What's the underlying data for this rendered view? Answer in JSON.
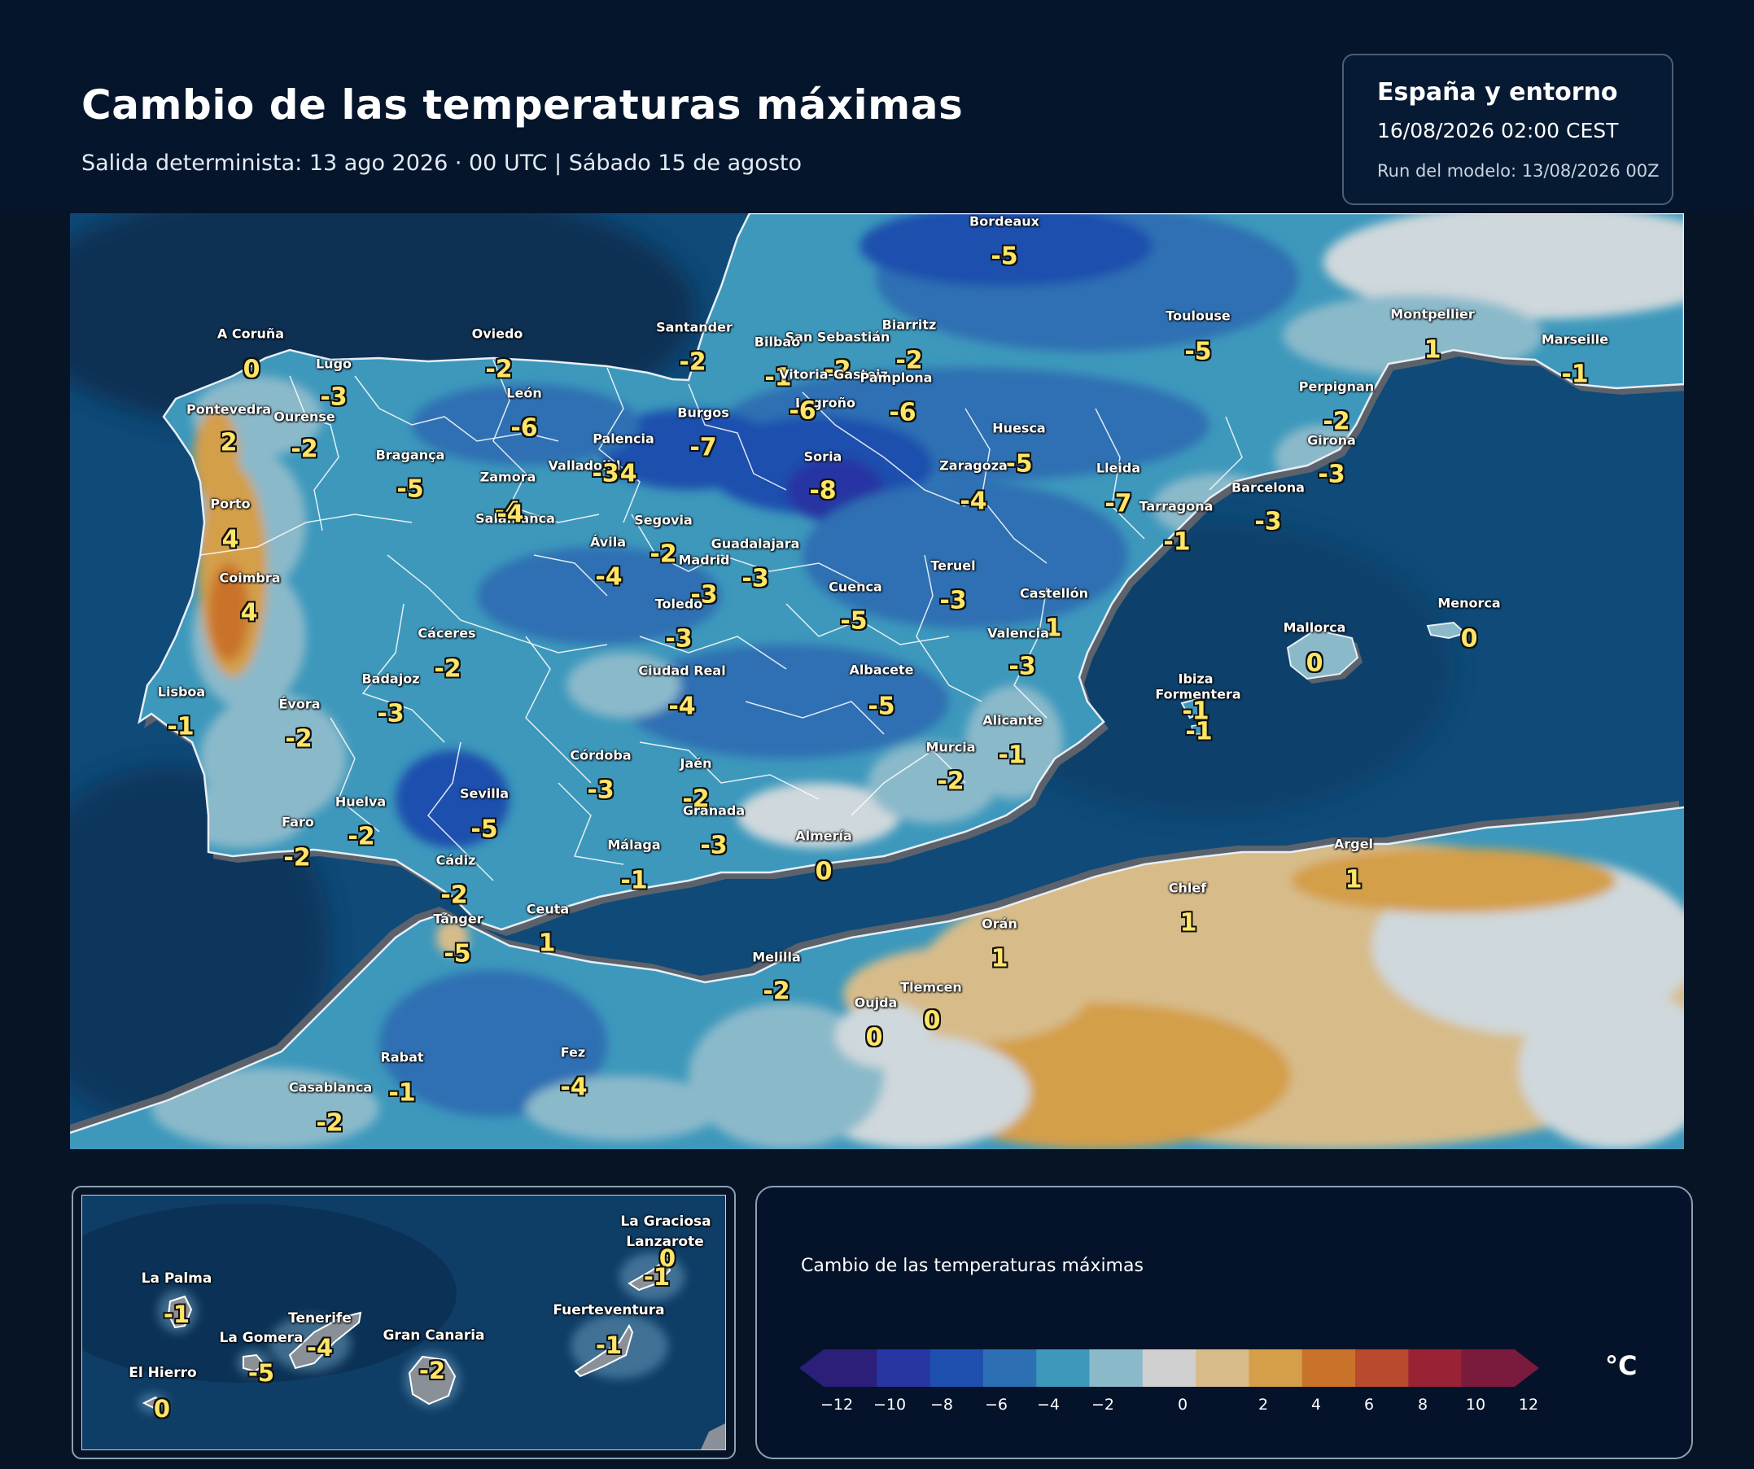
{
  "header": {
    "title": "Cambio de las temperaturas máximas",
    "subtitle": "Salida determinista: 13 ago 2026 · 00 UTC  |  Sábado 15 de agosto"
  },
  "info": {
    "region": "España y entorno",
    "datetime": "16/08/2026  02:00 CEST",
    "run": "Run del modelo: 13/08/2026 00Z"
  },
  "map": {
    "variable": "Cambio de las temperaturas máximas",
    "unit": "°C",
    "cities": [
      {
        "name": "Bordeaux",
        "value": "-5"
      },
      {
        "name": "Toulouse",
        "value": "-5"
      },
      {
        "name": "Montpellier",
        "value": "1"
      },
      {
        "name": "Marseille",
        "value": "-1"
      },
      {
        "name": "Biarritz",
        "value": "-2"
      },
      {
        "name": "San Sebastián",
        "value": "-2"
      },
      {
        "name": "Bilbao",
        "value": "-1"
      },
      {
        "name": "Vitoria-Gasteiz",
        "value": ""
      },
      {
        "name": "Pamplona",
        "value": "-6"
      },
      {
        "name": "Santander",
        "value": "-2"
      },
      {
        "name": "Oviedo",
        "value": "-2"
      },
      {
        "name": "A Coruña",
        "value": "0"
      },
      {
        "name": "Lugo",
        "value": "-3"
      },
      {
        "name": "Pontevedra",
        "value": "2"
      },
      {
        "name": "Ourense",
        "value": "-2"
      },
      {
        "name": "León",
        "value": "-6"
      },
      {
        "name": "Burgos",
        "value": "-7"
      },
      {
        "name": "Logroño",
        "value": "-6"
      },
      {
        "name": "Palencia",
        "value": "-4"
      },
      {
        "name": "Soria",
        "value": "-8"
      },
      {
        "name": "Huesca",
        "value": "-5"
      },
      {
        "name": "Perpignan",
        "value": "-2"
      },
      {
        "name": "Girona",
        "value": "-3"
      },
      {
        "name": "Bragança",
        "value": "-5"
      },
      {
        "name": "Zamora",
        "value": "-4"
      },
      {
        "name": "Valladolid",
        "value": "-3"
      },
      {
        "name": "Zaragoza",
        "value": "-4"
      },
      {
        "name": "Lleida",
        "value": "-7"
      },
      {
        "name": "Barcelona",
        "value": "-3"
      },
      {
        "name": "Tarragona",
        "value": "-1"
      },
      {
        "name": "Porto",
        "value": "4"
      },
      {
        "name": "Salamanca",
        "value": "-4"
      },
      {
        "name": "Segovia",
        "value": "-2"
      },
      {
        "name": "Ávila",
        "value": "-4"
      },
      {
        "name": "Guadalajara",
        "value": "-3"
      },
      {
        "name": "Madrid",
        "value": "-3"
      },
      {
        "name": "Coimbra",
        "value": "4"
      },
      {
        "name": "Teruel",
        "value": "-3"
      },
      {
        "name": "Cuenca",
        "value": "-5"
      },
      {
        "name": "Castellón",
        "value": "1"
      },
      {
        "name": "Toledo",
        "value": "-3"
      },
      {
        "name": "Cáceres",
        "value": "-2"
      },
      {
        "name": "Valencia",
        "value": "-3"
      },
      {
        "name": "Menorca",
        "value": "0"
      },
      {
        "name": "Mallorca",
        "value": "0"
      },
      {
        "name": "Ciudad Real",
        "value": "-4"
      },
      {
        "name": "Albacete",
        "value": "-5"
      },
      {
        "name": "Badajoz",
        "value": "-3"
      },
      {
        "name": "Lisboa",
        "value": "-1"
      },
      {
        "name": "Évora",
        "value": "-2"
      },
      {
        "name": "Ibiza",
        "value": "-1"
      },
      {
        "name": "Formentera",
        "value": "-1"
      },
      {
        "name": "Alicante",
        "value": "-1"
      },
      {
        "name": "Murcia",
        "value": "-2"
      },
      {
        "name": "Córdoba",
        "value": "-3"
      },
      {
        "name": "Jaén",
        "value": "-2"
      },
      {
        "name": "Granada",
        "value": "-3"
      },
      {
        "name": "Huelva",
        "value": "-2"
      },
      {
        "name": "Sevilla",
        "value": "-5"
      },
      {
        "name": "Faro",
        "value": "-2"
      },
      {
        "name": "Almería",
        "value": "0"
      },
      {
        "name": "Málaga",
        "value": "-1"
      },
      {
        "name": "Cádiz",
        "value": "-2"
      },
      {
        "name": "Argel",
        "value": "1"
      },
      {
        "name": "Chlef",
        "value": "1"
      },
      {
        "name": "Tánger",
        "value": "-5"
      },
      {
        "name": "Ceuta",
        "value": "1"
      },
      {
        "name": "Orán",
        "value": "1"
      },
      {
        "name": "Melilla",
        "value": "-2"
      },
      {
        "name": "Tlemcen",
        "value": "0"
      },
      {
        "name": "Oujda",
        "value": "0"
      },
      {
        "name": "Fez",
        "value": "-4"
      },
      {
        "name": "Rabat",
        "value": "-1"
      },
      {
        "name": "Casablanca",
        "value": "-2"
      }
    ]
  },
  "canarias": {
    "islands": [
      {
        "name": "La Graciosa",
        "value": "0"
      },
      {
        "name": "Lanzarote",
        "value": "-1"
      },
      {
        "name": "La Palma",
        "value": "-1"
      },
      {
        "name": "Tenerife",
        "value": "-4"
      },
      {
        "name": "La Gomera",
        "value": "-5"
      },
      {
        "name": "Gran Canaria",
        "value": "-2"
      },
      {
        "name": "Fuerteventura",
        "value": "-1"
      },
      {
        "name": "El Hierro",
        "value": "0"
      }
    ]
  },
  "legend": {
    "title": "Cambio de las temperaturas máximas",
    "unit": "°C",
    "ticks": [
      "−12",
      "−10",
      "−8",
      "−6",
      "−4",
      "−2",
      "0",
      "2",
      "4",
      "6",
      "8",
      "10",
      "12"
    ],
    "colors": [
      "#2b1f7a",
      "#2736a3",
      "#1f4fae",
      "#2d6fb3",
      "#3d98bc",
      "#8ab9ca",
      "#d0d0d0",
      "#d7bc8a",
      "#d49f48",
      "#c9732a",
      "#b94a2d",
      "#9a2235",
      "#7a1a3d"
    ]
  }
}
